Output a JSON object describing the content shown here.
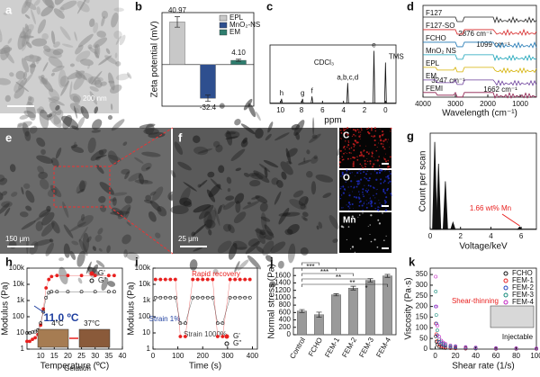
{
  "images": [
    {
      "label": "a",
      "scale_bar": "200 nm"
    },
    {
      "label": "e",
      "scale_bar": "150 μm"
    },
    {
      "label": "f",
      "scale_bar": "25 μm"
    }
  ],
  "eds_maps": [
    "C",
    "O",
    "Mn"
  ],
  "chart_data": [
    {
      "type": "bar",
      "label": "b",
      "ylabel": "Zeta potential (mV)",
      "categories": [
        "EPL",
        "MnO₂-NS",
        "EM"
      ],
      "values": [
        40.97,
        -32.4,
        4.1
      ],
      "value_labels": [
        "40.97",
        "-32.4",
        "4.10"
      ],
      "errors": [
        5,
        3,
        1
      ],
      "colors": [
        "#c8c8c8",
        "#2e4f8f",
        "#2e7d6e"
      ],
      "ylim": [
        -40,
        50
      ],
      "legend": "upper right"
    },
    {
      "type": "spectrum",
      "label": "c",
      "xlabel": "ppm",
      "xlim": [
        11,
        -1
      ],
      "xticks": [
        10,
        8,
        6,
        4,
        2,
        0
      ],
      "ylim": [
        0,
        1
      ],
      "peaks_x": [
        9.9,
        7.9,
        7.0,
        3.6,
        1.1,
        0
      ],
      "peaks_y": [
        0.08,
        0.08,
        0.12,
        0.35,
        0.9,
        0.7
      ],
      "peak_labels": [
        "h",
        "g",
        "f",
        "a,b,c,d",
        "e",
        "TMS"
      ],
      "annotations": [
        "CDCl₃"
      ],
      "color": "#111"
    },
    {
      "type": "ftir",
      "label": "d",
      "xlabel": "Wavelength (cm⁻¹)",
      "xlim": [
        4000,
        500
      ],
      "xticks": [
        4000,
        3000,
        2000,
        1000
      ],
      "series": [
        {
          "name": "F127",
          "color": "#222222"
        },
        {
          "name": "F127-SO",
          "color": "#d62728"
        },
        {
          "name": "FCHO",
          "color": "#1f77b4"
        },
        {
          "name": "MnO₂ NS",
          "color": "#17a2b8"
        },
        {
          "name": "EPL",
          "color": "#d4b000"
        },
        {
          "name": "EM",
          "color": "#6a3d9a"
        },
        {
          "name": "FEMI",
          "color": "#8b1a4a"
        }
      ],
      "annotations": [
        "2876 cm⁻¹",
        "1099 cm⁻¹",
        "3247 cm⁻¹",
        "1662 cm⁻¹"
      ]
    },
    {
      "type": "spectrum",
      "label": "g",
      "xlabel": "Voltage/keV",
      "ylabel": "Count per scan",
      "xlim": [
        0,
        7
      ],
      "xticks": [
        0,
        2,
        4,
        6
      ],
      "ylim": [
        0,
        1.1
      ],
      "peaks_x": [
        0.3,
        0.55,
        1.0,
        1.5,
        5.9
      ],
      "peaks_y": [
        1.0,
        0.75,
        0.55,
        0.08,
        0.03
      ],
      "annotations": [
        "1.66 wt% Mn"
      ],
      "color": "#111"
    },
    {
      "type": "line",
      "label": "h",
      "xlabel": "Temperature (ºC)",
      "ylabel": "Modulus (Pa)",
      "log_y": true,
      "xlim": [
        5,
        40
      ],
      "xticks": [
        10,
        15,
        20,
        25,
        30,
        35,
        40
      ],
      "ylim": [
        1,
        100000
      ],
      "yticks": [
        1,
        10,
        100,
        {
          "value": 1000,
          "label": "1k"
        },
        {
          "value": 10000,
          "label": "10k"
        },
        {
          "value": 100000,
          "label": "100k"
        }
      ],
      "x": [
        5,
        6,
        7,
        8,
        9,
        10,
        11,
        12,
        13,
        14,
        16,
        20,
        25,
        30,
        35,
        37
      ],
      "series": [
        {
          "name": "G'",
          "color": "#e8201f",
          "values": [
            3,
            3,
            4,
            5,
            8,
            30,
            300,
            6000,
            20000,
            30000,
            35000,
            35000,
            35000,
            35000,
            35000,
            35000
          ]
        },
        {
          "name": "G''",
          "color": "#111111",
          "values": [
            10,
            10,
            11,
            12,
            15,
            40,
            200,
            1500,
            3000,
            3500,
            3500,
            3500,
            3500,
            3500,
            3500,
            3500
          ]
        }
      ],
      "legend": "upper right",
      "annotations": [
        "11.0 ºC",
        "4°C",
        "37°C",
        "Gelation"
      ]
    },
    {
      "type": "line",
      "label": "i",
      "xlabel": "Time (s)",
      "ylabel": "Modulus (Pa)",
      "log_y": true,
      "xlim": [
        0,
        420
      ],
      "xticks": [
        0,
        100,
        200,
        300,
        400
      ],
      "ylim": [
        1,
        100000
      ],
      "yticks": [
        1,
        10,
        100,
        {
          "value": 1000,
          "label": "1k"
        },
        {
          "value": 10000,
          "label": "10k"
        },
        {
          "value": 100000,
          "label": "100k"
        }
      ],
      "x": [
        10,
        30,
        50,
        70,
        90,
        110,
        130,
        160,
        180,
        200,
        220,
        240,
        260,
        280,
        310,
        330,
        350,
        370,
        390
      ],
      "series": [
        {
          "name": "G'",
          "color": "#e8201f",
          "values": [
            20000,
            20000,
            20000,
            20000,
            20000,
            6,
            6,
            20000,
            20000,
            20000,
            20000,
            20000,
            6,
            6,
            20000,
            20000,
            20000,
            20000,
            20000
          ]
        },
        {
          "name": "G''",
          "color": "#111111",
          "values": [
            1500,
            1500,
            1500,
            1500,
            1500,
            40,
            40,
            1500,
            1500,
            1500,
            1500,
            1500,
            40,
            40,
            1500,
            1500,
            1500,
            1500,
            1500
          ]
        }
      ],
      "legend": "lower right",
      "annotations": [
        "Rapid recovery",
        "Strain 1%",
        "Strain 1000%"
      ]
    },
    {
      "type": "bar",
      "label": "j",
      "ylabel": "Normal stress (Pa)",
      "categories": [
        "Control",
        "FCHO",
        "FEM-1",
        "FEM-2",
        "FEM-3",
        "FEM-4"
      ],
      "values": [
        640,
        540,
        1080,
        1260,
        1470,
        1590
      ],
      "errors": [
        40,
        70,
        30,
        50,
        45,
        40
      ],
      "color": "#9a9a9a",
      "ylim": [
        0,
        1800
      ],
      "yticks": [
        0,
        200,
        400,
        600,
        800,
        1000,
        1200,
        1400,
        1600
      ],
      "significance": [
        "***",
        "***",
        "**",
        "**",
        "*"
      ]
    },
    {
      "type": "scatter",
      "label": "k",
      "xlabel": "Shear rate (1/s)",
      "ylabel": "Viscosity (Pa·s)",
      "xlim": [
        -5,
        100
      ],
      "xticks": [
        0,
        20,
        40,
        60,
        80,
        100
      ],
      "ylim": [
        0,
        380
      ],
      "yticks": [
        0,
        50,
        100,
        150,
        200,
        250,
        300,
        350
      ],
      "x": [
        0.5,
        1,
        2,
        4,
        6,
        8,
        10,
        15,
        20,
        30,
        40,
        60,
        80,
        100
      ],
      "series": [
        {
          "name": "FCHO",
          "color": "#111111",
          "values": [
            60,
            35,
            20,
            11,
            8,
            6,
            5,
            4,
            3,
            2,
            2,
            1,
            1,
            1
          ]
        },
        {
          "name": "FEM-1",
          "color": "#e8201f",
          "values": [
            120,
            70,
            38,
            20,
            14,
            11,
            9,
            6,
            5,
            3,
            3,
            2,
            2,
            1
          ]
        },
        {
          "name": "FEM-2",
          "color": "#1f3fbf",
          "values": [
            200,
            120,
            65,
            34,
            24,
            19,
            15,
            10,
            8,
            6,
            4,
            3,
            3,
            2
          ]
        },
        {
          "name": "FEM-3",
          "color": "#138a7a",
          "values": [
            270,
            160,
            88,
            46,
            32,
            25,
            20,
            14,
            11,
            8,
            6,
            4,
            3,
            3
          ]
        },
        {
          "name": "FEM-4",
          "color": "#c020c0",
          "values": [
            340,
            200,
            110,
            58,
            40,
            31,
            26,
            18,
            14,
            10,
            8,
            5,
            4,
            3
          ]
        }
      ],
      "legend": "upper right",
      "annotations": [
        "Shear-thinning",
        "Injectable"
      ]
    }
  ]
}
